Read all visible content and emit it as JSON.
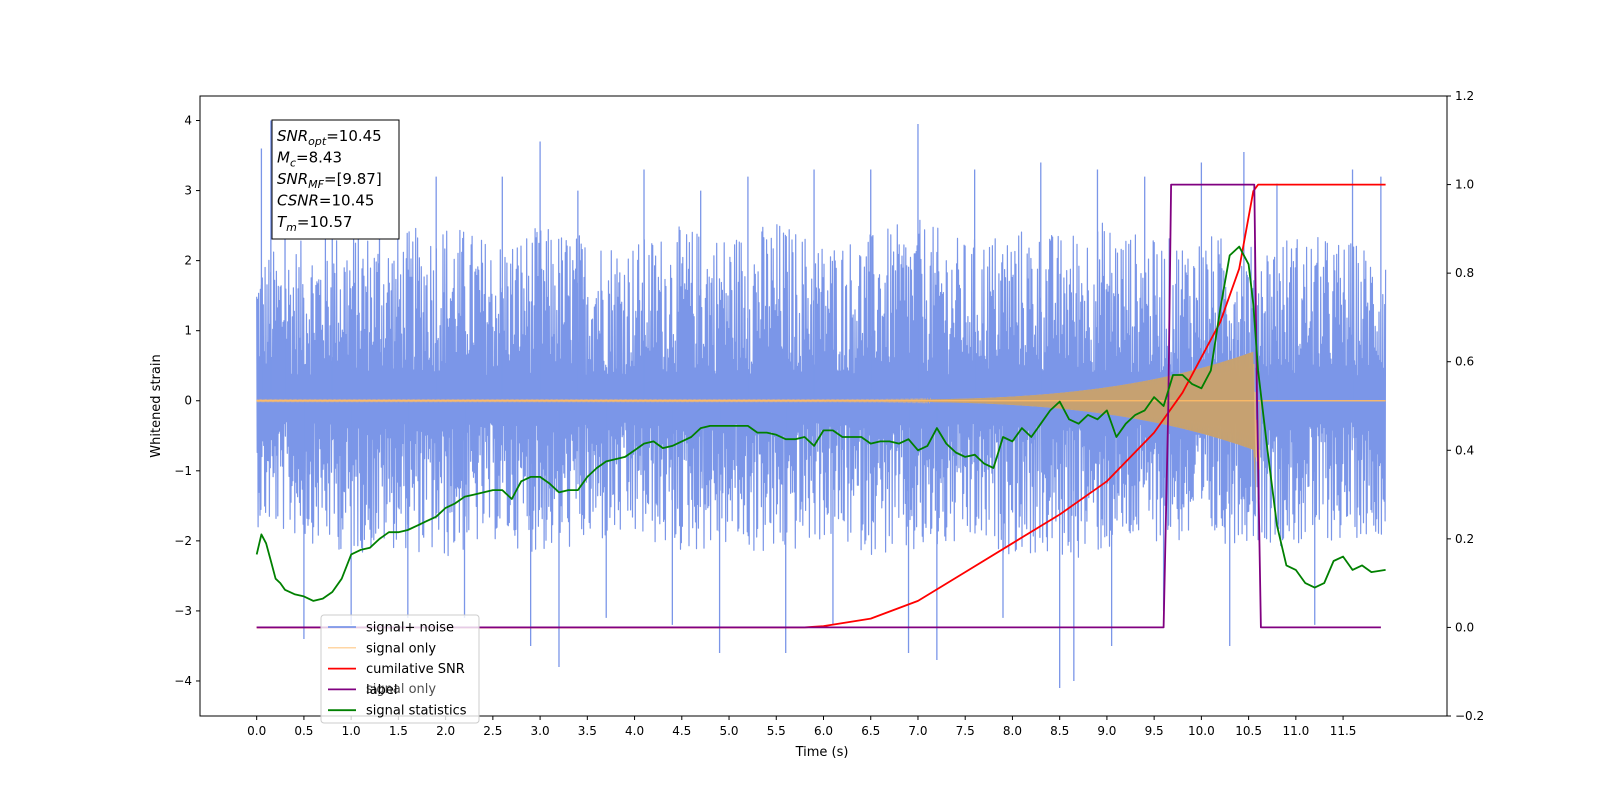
{
  "chart_data": {
    "type": "line",
    "title": "",
    "xlabel": "Time (s)",
    "ylabel": "Whitened strain",
    "y2label": "",
    "xlim": [
      -0.6,
      12.6
    ],
    "ylim": [
      -4.5,
      4.35
    ],
    "y2lim": [
      -0.2,
      1.2
    ],
    "x_ticks": [
      0.0,
      0.5,
      1.0,
      1.5,
      2.0,
      2.5,
      3.0,
      3.5,
      4.0,
      4.5,
      5.0,
      5.5,
      6.0,
      6.5,
      7.0,
      7.5,
      8.0,
      8.5,
      9.0,
      9.5,
      10.0,
      10.5,
      11.0,
      11.5
    ],
    "x_tick_labels": [
      "0.0",
      "0.5",
      "1.0",
      "1.5",
      "2.0",
      "2.5",
      "3.0",
      "3.5",
      "4.0",
      "4.5",
      "5.0",
      "5.5",
      "6.0",
      "6.5",
      "7.0",
      "7.5",
      "8.0",
      "8.5",
      "9.0",
      "9.5",
      "10.0",
      "10.5",
      "11.0",
      "11.5"
    ],
    "y_ticks": [
      -4,
      -3,
      -2,
      -1,
      0,
      1,
      2,
      3,
      4
    ],
    "y_tick_labels": [
      "−4",
      "−3",
      "−2",
      "−1",
      "0",
      "1",
      "2",
      "3",
      "4"
    ],
    "y2_ticks": [
      -0.2,
      0.0,
      0.2,
      0.4,
      0.6,
      0.8,
      1.0,
      1.2
    ],
    "y2_tick_labels": [
      "−0.2",
      "0.0",
      "0.2",
      "0.4",
      "0.6",
      "0.8",
      "1.0",
      "1.2"
    ],
    "grid": false,
    "legend_position": "lower-left",
    "noise_envelope": {
      "x": [
        0.0,
        0.5,
        1.0,
        1.5,
        2.0,
        2.5,
        3.0,
        3.5,
        4.0,
        4.5,
        5.0,
        5.5,
        6.0,
        6.5,
        7.0,
        7.5,
        8.0,
        8.5,
        9.0,
        9.5,
        10.0,
        10.5,
        11.0,
        11.5,
        11.95
      ],
      "upper": [
        2.1,
        2.3,
        2.5,
        2.4,
        2.6,
        2.3,
        2.5,
        2.4,
        2.3,
        2.5,
        2.4,
        2.6,
        2.3,
        2.4,
        2.6,
        2.3,
        2.5,
        2.4,
        2.6,
        2.3,
        2.4,
        2.3,
        2.4,
        2.3,
        2.2
      ],
      "lower": [
        -1.8,
        -2.0,
        -2.2,
        -2.1,
        -2.3,
        -2.0,
        -2.2,
        -2.1,
        -2.0,
        -2.2,
        -2.1,
        -2.3,
        -2.0,
        -2.2,
        -2.3,
        -2.1,
        -2.2,
        -2.3,
        -2.2,
        -2.0,
        -2.1,
        -2.0,
        -2.1,
        -2.0,
        -1.9
      ]
    },
    "noise_spikes": [
      [
        0.05,
        3.6
      ],
      [
        0.15,
        4.0
      ],
      [
        0.3,
        2.8
      ],
      [
        0.5,
        -3.4
      ],
      [
        0.8,
        3.3
      ],
      [
        1.0,
        -3.2
      ],
      [
        1.3,
        3.2
      ],
      [
        1.6,
        -3.1
      ],
      [
        1.9,
        3.2
      ],
      [
        2.2,
        -3.1
      ],
      [
        2.6,
        3.2
      ],
      [
        2.9,
        -3.5
      ],
      [
        3.0,
        3.7
      ],
      [
        3.2,
        -3.8
      ],
      [
        3.4,
        3.0
      ],
      [
        3.7,
        -3.1
      ],
      [
        4.1,
        3.3
      ],
      [
        4.4,
        -3.2
      ],
      [
        4.7,
        3.0
      ],
      [
        4.9,
        -3.6
      ],
      [
        5.2,
        3.2
      ],
      [
        5.6,
        -3.6
      ],
      [
        5.9,
        3.3
      ],
      [
        6.1,
        -3.2
      ],
      [
        6.5,
        3.3
      ],
      [
        6.9,
        -3.6
      ],
      [
        7.0,
        3.95
      ],
      [
        7.2,
        -3.7
      ],
      [
        7.6,
        3.3
      ],
      [
        7.9,
        -3.1
      ],
      [
        8.3,
        3.4
      ],
      [
        8.5,
        -4.1
      ],
      [
        8.65,
        -4.0
      ],
      [
        8.9,
        3.3
      ],
      [
        9.05,
        -3.5
      ],
      [
        9.4,
        3.2
      ],
      [
        9.6,
        -3.0
      ],
      [
        10.0,
        3.4
      ],
      [
        10.3,
        -3.5
      ],
      [
        10.45,
        3.55
      ],
      [
        10.8,
        3.1
      ],
      [
        11.2,
        -3.2
      ],
      [
        11.6,
        3.3
      ],
      [
        11.9,
        3.2
      ]
    ],
    "series": [
      {
        "name": "signal+ noise",
        "color": "#7b96e8",
        "kind": "noise"
      },
      {
        "name": "signal only",
        "color": "#ffbb66",
        "kind": "chirp"
      },
      {
        "name": "cumilative SNR",
        "color": "#ff0000",
        "axis": "right",
        "x": [
          0.0,
          5.8,
          6.0,
          6.5,
          7.0,
          7.5,
          8.0,
          8.5,
          9.0,
          9.5,
          9.8,
          10.0,
          10.2,
          10.4,
          10.55,
          10.6,
          11.95
        ],
        "y": [
          0.0,
          0.0,
          0.003,
          0.02,
          0.06,
          0.125,
          0.19,
          0.255,
          0.33,
          0.44,
          0.53,
          0.61,
          0.69,
          0.81,
          0.985,
          1.0,
          1.0
        ]
      },
      {
        "name": "label",
        "color": "#800080",
        "axis": "right",
        "x": [
          0.0,
          9.6,
          9.65,
          9.68,
          10.56,
          10.59,
          10.63,
          11.9
        ],
        "y": [
          0.0,
          0.0,
          0.5,
          1.0,
          1.0,
          0.5,
          0.0,
          0.0
        ]
      },
      {
        "name": "signal statistics",
        "color": "#008000",
        "axis": "right",
        "x": [
          0.0,
          0.05,
          0.1,
          0.15,
          0.2,
          0.25,
          0.3,
          0.4,
          0.5,
          0.6,
          0.7,
          0.8,
          0.9,
          1.0,
          1.1,
          1.2,
          1.3,
          1.4,
          1.5,
          1.6,
          1.7,
          1.8,
          1.9,
          2.0,
          2.1,
          2.2,
          2.3,
          2.4,
          2.5,
          2.6,
          2.7,
          2.8,
          2.9,
          3.0,
          3.1,
          3.2,
          3.3,
          3.4,
          3.5,
          3.6,
          3.7,
          3.8,
          3.9,
          4.0,
          4.1,
          4.2,
          4.3,
          4.4,
          4.5,
          4.6,
          4.7,
          4.8,
          4.9,
          5.0,
          5.2,
          5.3,
          5.4,
          5.5,
          5.6,
          5.7,
          5.8,
          5.9,
          6.0,
          6.1,
          6.2,
          6.3,
          6.4,
          6.5,
          6.6,
          6.7,
          6.8,
          6.9,
          7.0,
          7.1,
          7.2,
          7.3,
          7.4,
          7.5,
          7.6,
          7.7,
          7.8,
          7.9,
          8.0,
          8.1,
          8.2,
          8.3,
          8.4,
          8.5,
          8.6,
          8.7,
          8.8,
          8.9,
          9.0,
          9.1,
          9.2,
          9.3,
          9.4,
          9.5,
          9.6,
          9.7,
          9.8,
          9.9,
          10.0,
          10.1,
          10.2,
          10.3,
          10.4,
          10.5,
          10.55,
          10.6,
          10.7,
          10.8,
          10.9,
          11.0,
          11.1,
          11.2,
          11.3,
          11.4,
          11.5,
          11.6,
          11.7,
          11.8,
          11.95
        ],
        "y": [
          0.165,
          0.21,
          0.19,
          0.15,
          0.11,
          0.1,
          0.085,
          0.075,
          0.07,
          0.06,
          0.065,
          0.08,
          0.11,
          0.165,
          0.175,
          0.18,
          0.2,
          0.215,
          0.215,
          0.22,
          0.23,
          0.24,
          0.25,
          0.27,
          0.28,
          0.295,
          0.3,
          0.305,
          0.31,
          0.31,
          0.29,
          0.33,
          0.34,
          0.34,
          0.325,
          0.305,
          0.31,
          0.31,
          0.34,
          0.36,
          0.375,
          0.38,
          0.385,
          0.4,
          0.415,
          0.42,
          0.405,
          0.41,
          0.42,
          0.43,
          0.45,
          0.455,
          0.455,
          0.455,
          0.455,
          0.44,
          0.44,
          0.435,
          0.425,
          0.425,
          0.43,
          0.41,
          0.445,
          0.445,
          0.43,
          0.43,
          0.43,
          0.415,
          0.42,
          0.42,
          0.415,
          0.425,
          0.4,
          0.41,
          0.45,
          0.415,
          0.395,
          0.385,
          0.39,
          0.37,
          0.36,
          0.43,
          0.42,
          0.45,
          0.43,
          0.46,
          0.49,
          0.51,
          0.47,
          0.46,
          0.48,
          0.47,
          0.49,
          0.43,
          0.46,
          0.48,
          0.49,
          0.52,
          0.5,
          0.57,
          0.57,
          0.55,
          0.54,
          0.58,
          0.72,
          0.84,
          0.86,
          0.82,
          0.73,
          0.58,
          0.4,
          0.23,
          0.14,
          0.13,
          0.1,
          0.09,
          0.1,
          0.15,
          0.16,
          0.13,
          0.14,
          0.125,
          0.13
        ]
      }
    ],
    "annotation_lines": [
      {
        "var": "SNR",
        "sub": "opt",
        "value": "=10.45"
      },
      {
        "var": "M",
        "sub": "c",
        "value": "=8.43"
      },
      {
        "var": "SNR",
        "sub": "MF",
        "value": "=[9.87]"
      },
      {
        "var": "CSNR",
        "sub": "",
        "value": "=10.45"
      },
      {
        "var": "T",
        "sub": "m",
        "value": "=10.57"
      }
    ],
    "legend_overlap_text": "signal only"
  }
}
